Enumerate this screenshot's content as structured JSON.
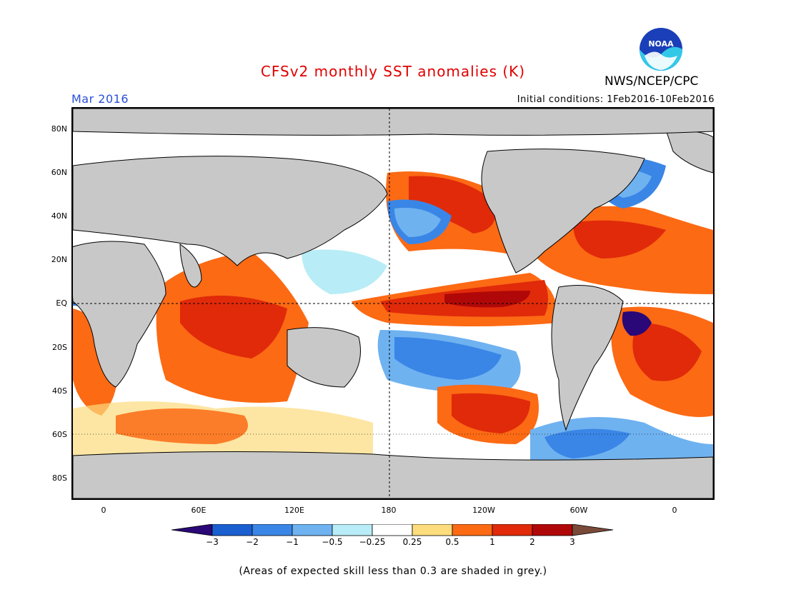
{
  "header": {
    "title": "CFSv2 monthly SST anomalies (K)",
    "agency": "NWS/NCEP/CPC",
    "valid_month": "Mar 2016",
    "initial_conditions": "Initial conditions: 1Feb2016-10Feb2016",
    "logo_text": "NOAA"
  },
  "map": {
    "lat_labels": [
      "80N",
      "60N",
      "40N",
      "20N",
      "EQ",
      "20S",
      "40S",
      "60S",
      "80S"
    ],
    "lon_labels": [
      "0",
      "60E",
      "120E",
      "180",
      "120W",
      "60W",
      "0"
    ]
  },
  "colorbar": {
    "levels": [
      "-3",
      "-2",
      "-1",
      "-0.5",
      "-0.25",
      "0.25",
      "0.5",
      "1",
      "2",
      "3"
    ],
    "colors": [
      "#3a0fa0",
      "#1a5fd0",
      "#3a86e6",
      "#6fb2f0",
      "#b8ecf6",
      "#ffffff",
      "#fcdc7c",
      "#fc6a14",
      "#e02a0a",
      "#b00808"
    ],
    "under_color": "#2a0878",
    "over_color": "#7a4a38"
  },
  "footnote": "(Areas of expected skill less than 0.3 are shaded in grey.)"
}
